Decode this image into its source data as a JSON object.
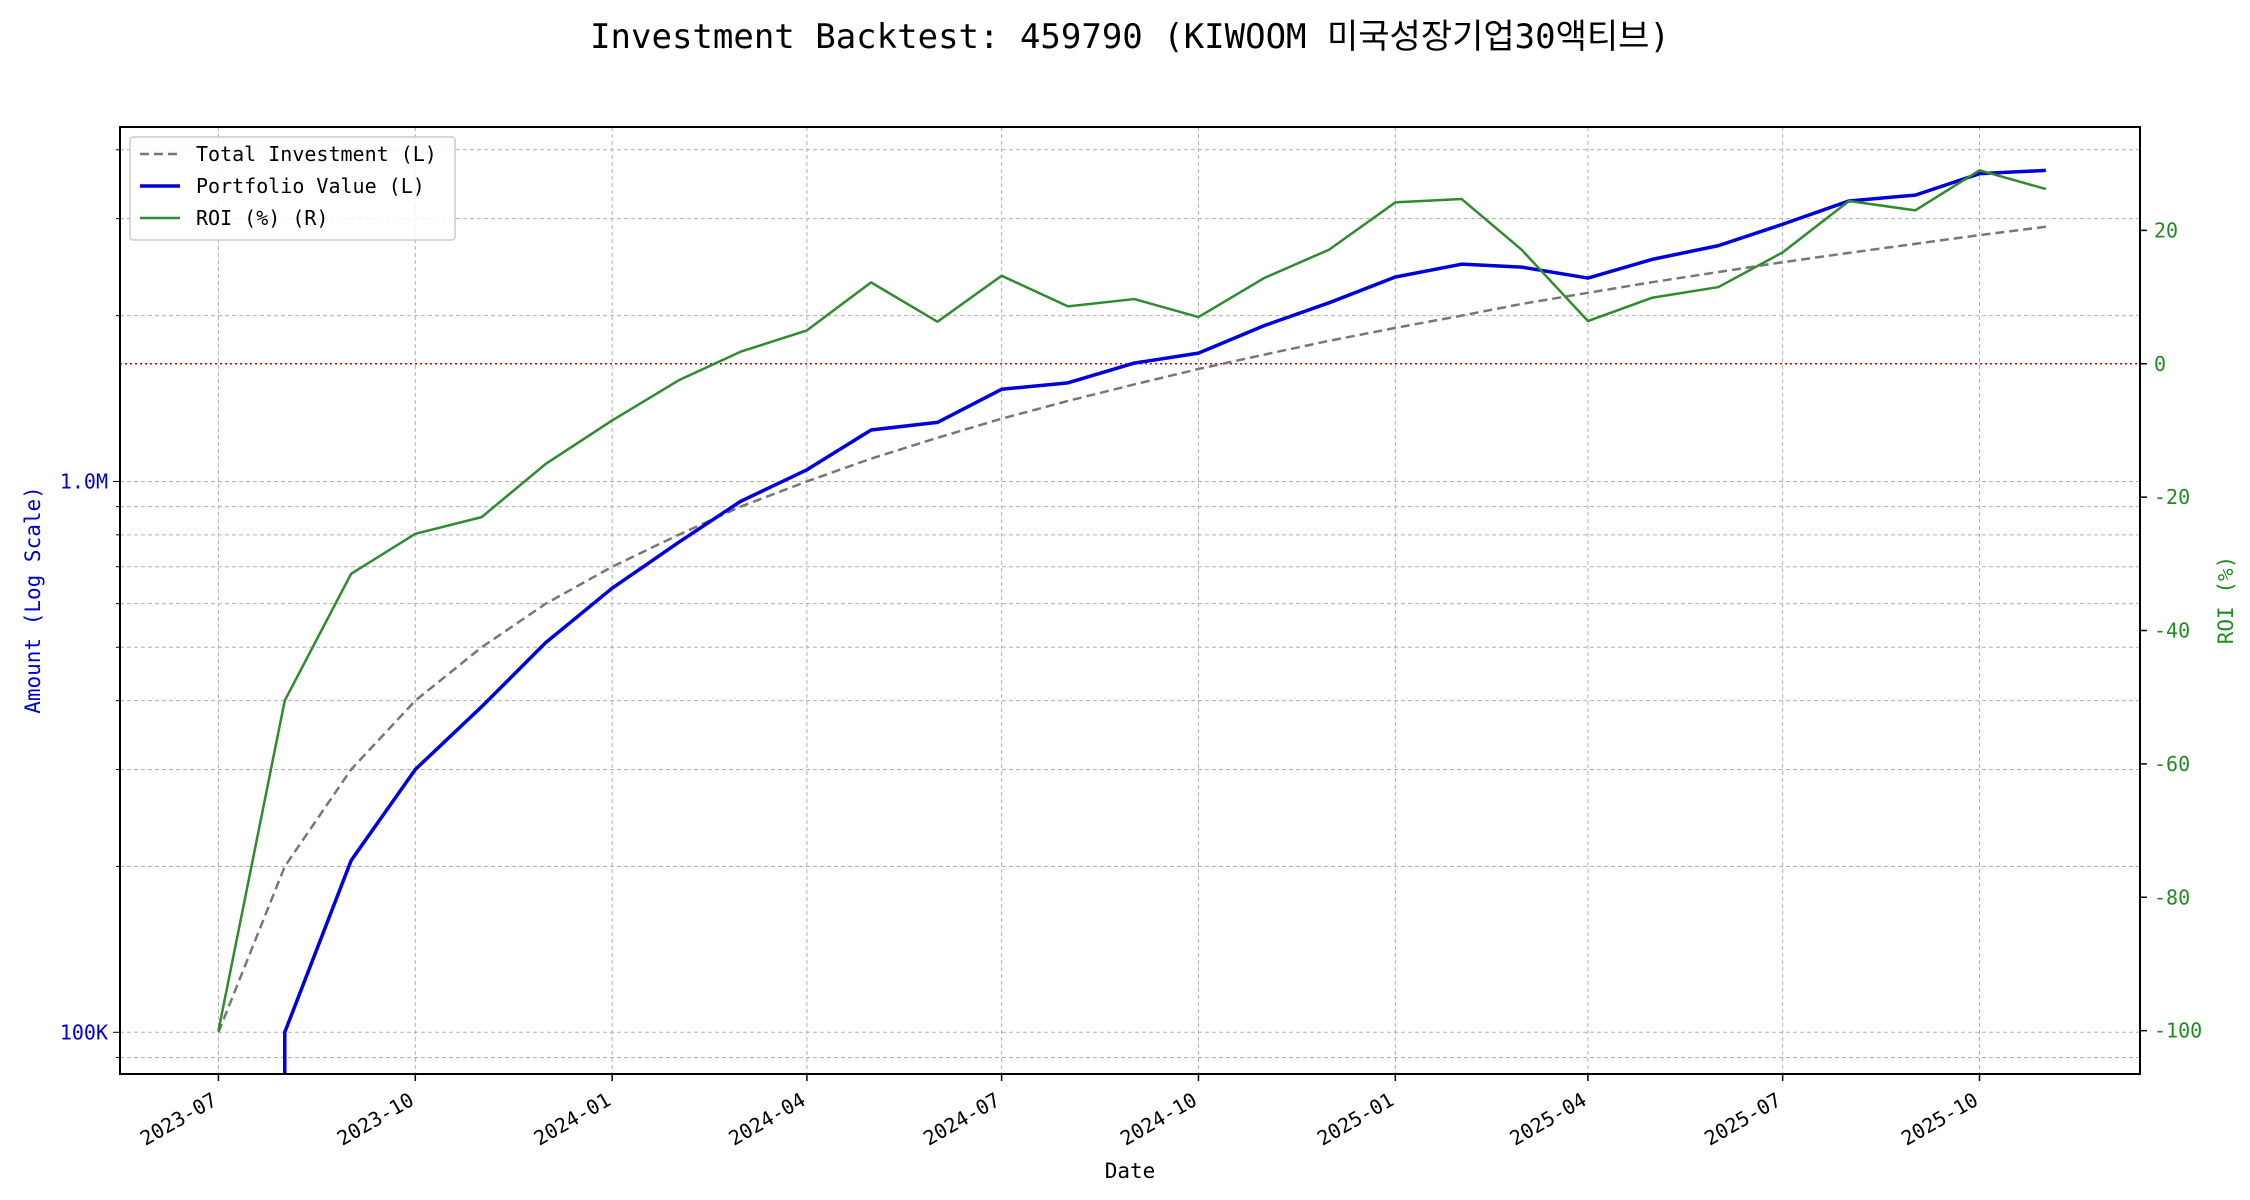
{
  "chart_data": {
    "type": "line",
    "title": "Investment Backtest: 459790 (KIWOOM 미국성장기업30액티브)",
    "xlabel": "Date",
    "ylabel_left": "Amount (Log Scale)",
    "ylabel_right": "ROI (%)",
    "x_ticks": [
      "2023-07",
      "2023-10",
      "2024-01",
      "2024-04",
      "2024-07",
      "2024-10",
      "2025-01",
      "2025-04",
      "2025-07",
      "2025-10"
    ],
    "y_left_scale": "log",
    "y_left_ticks": [
      {
        "value": 100000,
        "label": "100K"
      },
      {
        "value": 1000000,
        "label": "1.0M"
      }
    ],
    "y_left_range": [
      84000,
      4400000
    ],
    "y_right_ticks": [
      -100,
      -80,
      -60,
      -40,
      -20,
      0,
      20
    ],
    "y_right_range": [
      -106.5,
      35.5
    ],
    "x_range": [
      "2023-05-16",
      "2025-12-15"
    ],
    "grid": true,
    "legend_position": "top-left",
    "reference_line": {
      "axis": "right",
      "value": 0,
      "color": "#cc0000",
      "style": "dotted"
    },
    "colors": {
      "left_axis": "#0000cc",
      "right_axis": "#228b22"
    },
    "x": [
      "2023-07-01",
      "2023-08-01",
      "2023-09-01",
      "2023-10-01",
      "2023-11-01",
      "2023-12-01",
      "2024-01-01",
      "2024-02-01",
      "2024-03-01",
      "2024-04-01",
      "2024-05-01",
      "2024-06-01",
      "2024-07-01",
      "2024-08-01",
      "2024-09-01",
      "2024-10-01",
      "2024-11-01",
      "2024-12-01",
      "2025-01-01",
      "2025-02-01",
      "2025-03-01",
      "2025-04-01",
      "2025-05-01",
      "2025-06-01",
      "2025-07-01",
      "2025-08-01",
      "2025-09-01",
      "2025-10-01",
      "2025-11-01"
    ],
    "series": [
      {
        "name": "Total Investment (L)",
        "axis": "left",
        "style": "dashed",
        "color": "#777777",
        "values": [
          100000,
          200000,
          300000,
          400000,
          500000,
          600000,
          700000,
          800000,
          900000,
          1000000,
          1100000,
          1200000,
          1300000,
          1400000,
          1500000,
          1600000,
          1700000,
          1800000,
          1900000,
          2000000,
          2100000,
          2200000,
          2300000,
          2400000,
          2500000,
          2600000,
          2700000,
          2800000,
          2900000
        ]
      },
      {
        "name": "Portfolio Value (L)",
        "axis": "left",
        "style": "solid",
        "color": "#0000dd",
        "values": [
          null,
          100000,
          205000,
          300000,
          390000,
          510000,
          640000,
          775000,
          920000,
          1050000,
          1240000,
          1280000,
          1470000,
          1510000,
          1640000,
          1710000,
          1920000,
          2110000,
          2350000,
          2480000,
          2450000,
          2340000,
          2530000,
          2680000,
          2930000,
          3230000,
          3310000,
          3620000,
          3670000
        ]
      },
      {
        "name": "ROI (%) (R)",
        "axis": "right",
        "style": "solid",
        "color": "#2e8b2e",
        "values": [
          -100,
          -50.5,
          -31.5,
          -25.5,
          -23,
          -15,
          -8.5,
          -2.5,
          1.8,
          5,
          12.2,
          6.3,
          13.2,
          8.6,
          9.7,
          7,
          12.9,
          17.1,
          24.2,
          24.7,
          17.1,
          6.4,
          9.9,
          11.5,
          16.7,
          24.4,
          23,
          29,
          26.2
        ]
      }
    ]
  }
}
